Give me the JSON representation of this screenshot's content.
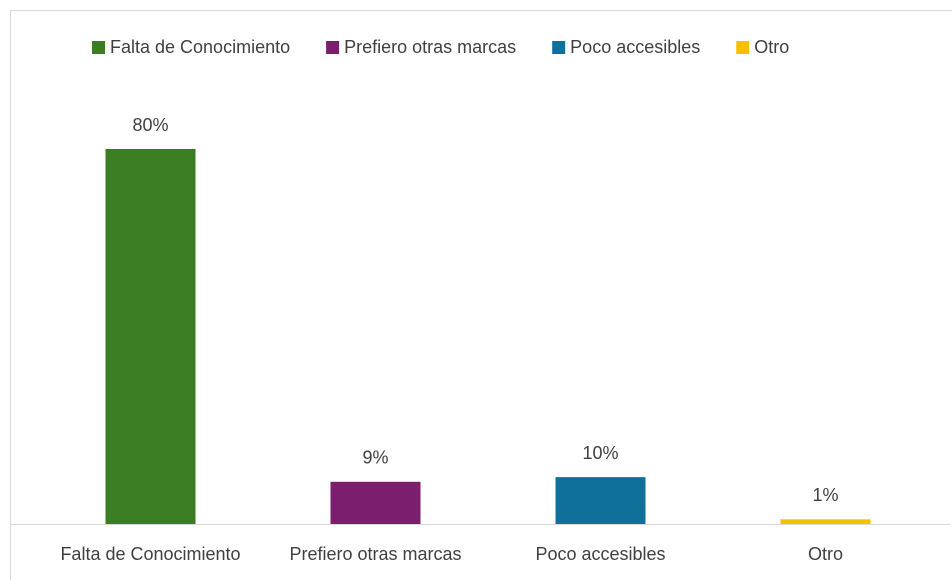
{
  "chart_data": {
    "type": "bar",
    "categories": [
      "Falta de Conocimiento",
      "Prefiero otras marcas",
      "Poco accesibles",
      "Otro"
    ],
    "values": [
      80,
      9,
      10,
      1
    ],
    "value_labels": [
      "80%",
      "9%",
      "10%",
      "1%"
    ],
    "colors": [
      "#3b7d23",
      "#7b1e6e",
      "#0f7199",
      "#f5c000"
    ],
    "legend": "top"
  }
}
